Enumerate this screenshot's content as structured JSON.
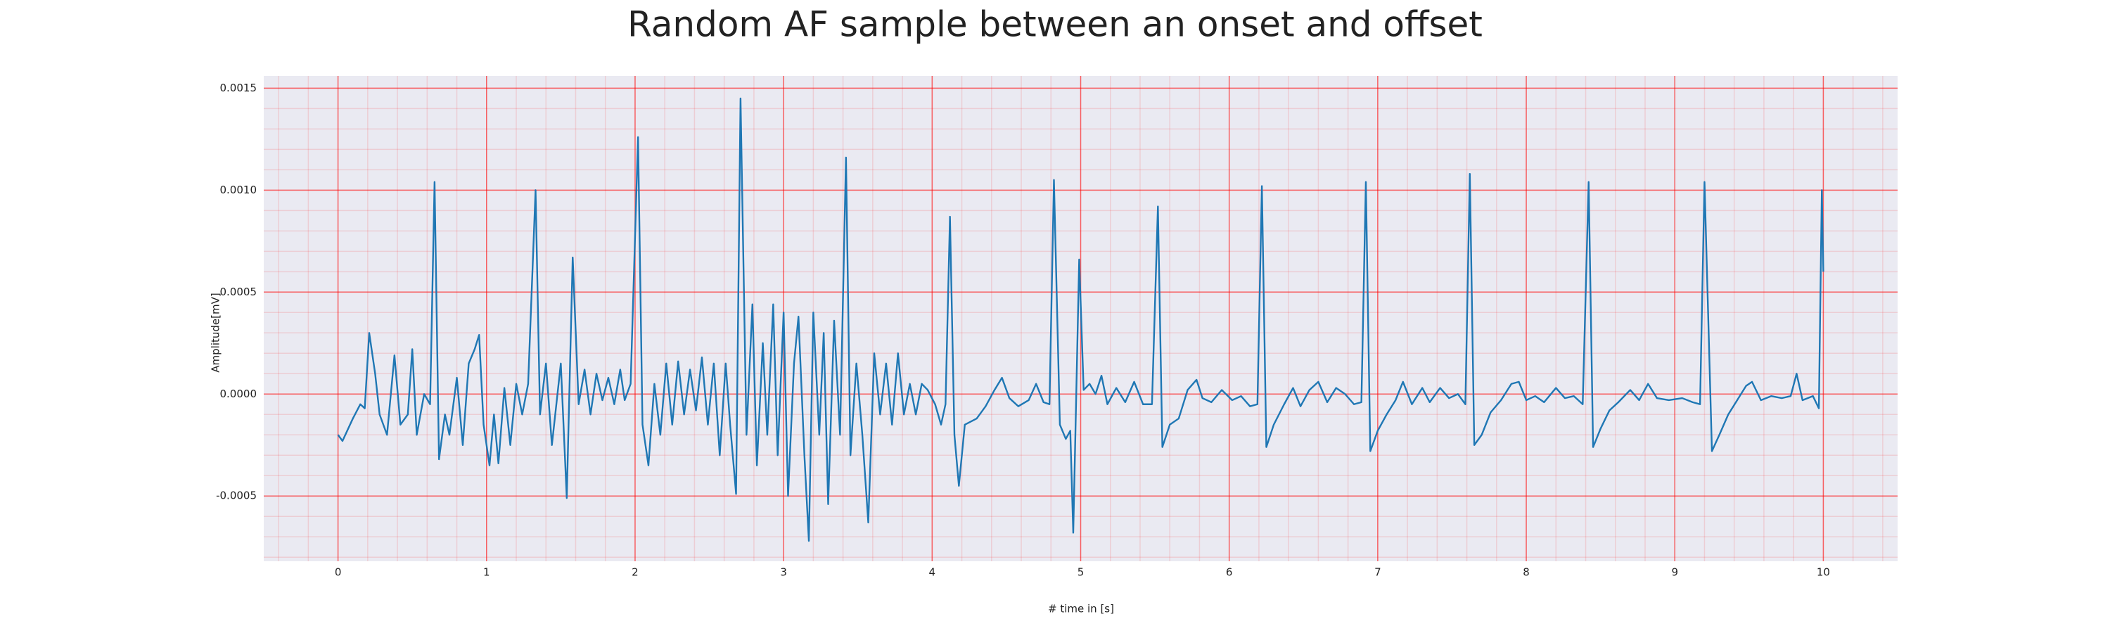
{
  "chart_data": {
    "type": "line",
    "title": "Random AF sample between an onset and offset",
    "xlabel": "# time in [s]",
    "ylabel": "Amplitude[mV]",
    "xlim": [
      -0.5,
      10.5
    ],
    "ylim": [
      -0.00082,
      0.00156
    ],
    "xticks": [
      0,
      1,
      2,
      3,
      4,
      5,
      6,
      7,
      8,
      9,
      10
    ],
    "yticks": [
      {
        "value": -0.0005,
        "label": "-0.0005"
      },
      {
        "value": 0,
        "label": "0.0000"
      },
      {
        "value": 0.0005,
        "label": "0.0005"
      },
      {
        "value": 0.001,
        "label": "0.0010"
      },
      {
        "value": 0.0015,
        "label": "0.0015"
      }
    ],
    "grid": true,
    "minor_grid": true,
    "grid_color": "#ff0000",
    "background": "#eaeaf2",
    "series": [
      {
        "color": "#1f77b4",
        "x": [
          0,
          0.03,
          0.1,
          0.15,
          0.18,
          0.21,
          0.25,
          0.28,
          0.33,
          0.38,
          0.42,
          0.47,
          0.5,
          0.53,
          0.58,
          0.62,
          0.65,
          0.68,
          0.72,
          0.75,
          0.8,
          0.84,
          0.88,
          0.92,
          0.95,
          0.98,
          1.02,
          1.05,
          1.08,
          1.12,
          1.16,
          1.2,
          1.24,
          1.28,
          1.33,
          1.36,
          1.4,
          1.44,
          1.47,
          1.5,
          1.54,
          1.58,
          1.62,
          1.66,
          1.7,
          1.74,
          1.78,
          1.82,
          1.86,
          1.9,
          1.93,
          1.97,
          2.02,
          2.05,
          2.09,
          2.13,
          2.17,
          2.21,
          2.25,
          2.29,
          2.33,
          2.37,
          2.41,
          2.45,
          2.49,
          2.53,
          2.57,
          2.61,
          2.64,
          2.68,
          2.71,
          2.75,
          2.79,
          2.82,
          2.86,
          2.89,
          2.93,
          2.96,
          3.0,
          3.03,
          3.07,
          3.1,
          3.14,
          3.17,
          3.2,
          3.24,
          3.27,
          3.3,
          3.34,
          3.38,
          3.42,
          3.45,
          3.49,
          3.53,
          3.57,
          3.61,
          3.65,
          3.69,
          3.73,
          3.77,
          3.81,
          3.85,
          3.89,
          3.93,
          3.97,
          4.02,
          4.06,
          4.09,
          4.12,
          4.15,
          4.18,
          4.22,
          4.3,
          4.36,
          4.42,
          4.47,
          4.52,
          4.58,
          4.65,
          4.7,
          4.75,
          4.79,
          4.82,
          4.86,
          4.9,
          4.93,
          4.95,
          4.99,
          5.02,
          5.06,
          5.1,
          5.14,
          5.18,
          5.24,
          5.3,
          5.36,
          5.42,
          5.48,
          5.52,
          5.55,
          5.6,
          5.66,
          5.72,
          5.78,
          5.82,
          5.88,
          5.95,
          6.02,
          6.08,
          6.14,
          6.19,
          6.22,
          6.25,
          6.3,
          6.37,
          6.43,
          6.48,
          6.54,
          6.6,
          6.66,
          6.72,
          6.78,
          6.84,
          6.89,
          6.92,
          6.95,
          7.0,
          7.06,
          7.12,
          7.17,
          7.23,
          7.3,
          7.35,
          7.42,
          7.48,
          7.54,
          7.59,
          7.62,
          7.65,
          7.7,
          7.76,
          7.83,
          7.9,
          7.95,
          8.0,
          8.06,
          8.12,
          8.2,
          8.26,
          8.32,
          8.38,
          8.42,
          8.45,
          8.5,
          8.56,
          8.62,
          8.7,
          8.76,
          8.82,
          8.88,
          8.96,
          9.05,
          9.12,
          9.17,
          9.2,
          9.25,
          9.3,
          9.36,
          9.42,
          9.48,
          9.52,
          9.58,
          9.65,
          9.72,
          9.78,
          9.82,
          9.86,
          9.93,
          9.97,
          9.99,
          10.0
        ],
        "values": [
          -0.0002,
          -0.00023,
          -0.00012,
          -5e-05,
          -7e-05,
          0.0003,
          0.0001,
          -0.0001,
          -0.0002,
          0.00019,
          -0.00015,
          -0.0001,
          0.00022,
          -0.0002,
          0,
          -5e-05,
          0.00104,
          -0.00032,
          -0.0001,
          -0.0002,
          8e-05,
          -0.00025,
          0.00015,
          0.00022,
          0.00029,
          -0.00015,
          -0.00035,
          -0.0001,
          -0.00034,
          3e-05,
          -0.00025,
          5e-05,
          -0.0001,
          5e-05,
          0.001,
          -0.0001,
          0.00015,
          -0.00025,
          -5e-05,
          0.00015,
          -0.00051,
          0.00067,
          -5e-05,
          0.00012,
          -0.0001,
          0.0001,
          -3e-05,
          8e-05,
          -5e-05,
          0.00012,
          -3e-05,
          5e-05,
          0.00126,
          -0.00015,
          -0.00035,
          5e-05,
          -0.0002,
          0.00015,
          -0.00015,
          0.00016,
          -0.0001,
          0.00012,
          -8e-05,
          0.00018,
          -0.00015,
          0.00015,
          -0.0003,
          0.00015,
          -0.00015,
          -0.00049,
          0.00145,
          -0.0002,
          0.00044,
          -0.00035,
          0.00025,
          -0.0002,
          0.00044,
          -0.0003,
          0.0004,
          -0.0005,
          0.00015,
          0.00038,
          -0.0003,
          -0.00072,
          0.0004,
          -0.0002,
          0.0003,
          -0.00054,
          0.00036,
          -0.0002,
          0.00116,
          -0.0003,
          0.00015,
          -0.0002,
          -0.00063,
          0.0002,
          -0.0001,
          0.00015,
          -0.00015,
          0.0002,
          -0.0001,
          5e-05,
          -0.0001,
          5e-05,
          2e-05,
          -5e-05,
          -0.00015,
          -5e-05,
          0.00087,
          -0.0002,
          -0.00045,
          -0.00015,
          -0.00012,
          -6e-05,
          2e-05,
          8e-05,
          -2e-05,
          -6e-05,
          -3e-05,
          5e-05,
          -4e-05,
          -5e-05,
          0.00105,
          -0.00015,
          -0.00022,
          -0.00018,
          -0.00068,
          0.00066,
          2e-05,
          5e-05,
          0,
          9e-05,
          -5e-05,
          3e-05,
          -4e-05,
          6e-05,
          -5e-05,
          -5e-05,
          0.00092,
          -0.00026,
          -0.00015,
          -0.00012,
          2e-05,
          7e-05,
          -2e-05,
          -4e-05,
          2e-05,
          -3e-05,
          -1e-05,
          -6e-05,
          -5e-05,
          0.00102,
          -0.00026,
          -0.00015,
          -5e-05,
          3e-05,
          -6e-05,
          2e-05,
          6e-05,
          -4e-05,
          3e-05,
          0,
          -5e-05,
          -4e-05,
          0.00104,
          -0.00028,
          -0.00018,
          -0.0001,
          -3e-05,
          6e-05,
          -5e-05,
          3e-05,
          -4e-05,
          3e-05,
          -2e-05,
          0,
          -5e-05,
          0.00108,
          -0.00025,
          -0.0002,
          -9e-05,
          -3e-05,
          5e-05,
          6e-05,
          -3e-05,
          -1e-05,
          -4e-05,
          3e-05,
          -2e-05,
          -1e-05,
          -5e-05,
          0.00104,
          -0.00026,
          -0.00017,
          -8e-05,
          -4e-05,
          2e-05,
          -3e-05,
          5e-05,
          -2e-05,
          -3e-05,
          -2e-05,
          -4e-05,
          -5e-05,
          0.00104,
          -0.00028,
          -0.0002,
          -0.0001,
          -3e-05,
          4e-05,
          6e-05,
          -3e-05,
          -1e-05,
          -2e-05,
          -1e-05,
          0.0001,
          -3e-05,
          -1e-05,
          -7e-05,
          0.001,
          0.0006
        ]
      }
    ]
  }
}
